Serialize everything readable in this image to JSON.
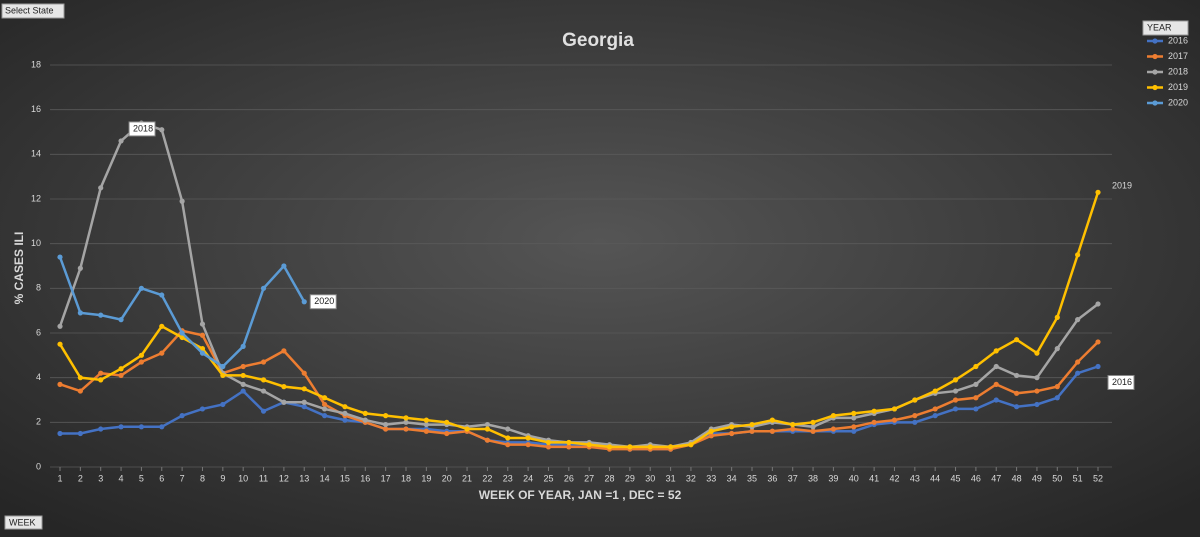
{
  "controls": {
    "state_filter": "Select State",
    "year_filter": "YEAR",
    "week_filter": "WEEK"
  },
  "chart_data": {
    "type": "line",
    "title": "Georgia",
    "y_label": "% CASES ILI",
    "x_label": "WEEK OF YEAR, JAN =1 , DEC = 52",
    "categories": [
      1,
      2,
      3,
      4,
      5,
      6,
      7,
      8,
      9,
      10,
      11,
      12,
      13,
      14,
      15,
      16,
      17,
      18,
      19,
      20,
      21,
      22,
      23,
      24,
      25,
      26,
      27,
      28,
      29,
      30,
      31,
      32,
      33,
      34,
      35,
      36,
      37,
      38,
      39,
      40,
      41,
      42,
      43,
      44,
      45,
      46,
      47,
      48,
      49,
      50,
      51,
      52
    ],
    "ylim": [
      0,
      18
    ],
    "yticks": [
      0,
      2,
      4,
      6,
      8,
      10,
      12,
      14,
      16,
      18
    ],
    "grid": true,
    "legend": "top-right",
    "series": [
      {
        "name": "2016",
        "color": "#4472c4",
        "values": [
          1.5,
          1.5,
          1.7,
          1.8,
          1.8,
          1.8,
          2.3,
          2.6,
          2.8,
          3.4,
          2.5,
          2.9,
          2.7,
          2.3,
          2.1,
          2.0,
          1.7,
          1.7,
          1.7,
          1.6,
          1.6,
          1.2,
          1.1,
          1.1,
          1.0,
          1.0,
          1.0,
          0.9,
          0.8,
          0.8,
          0.8,
          1.1,
          1.5,
          1.5,
          1.6,
          1.6,
          1.6,
          1.6,
          1.6,
          1.6,
          1.9,
          2.0,
          2.0,
          2.3,
          2.6,
          2.6,
          3.0,
          2.7,
          2.8,
          3.1,
          4.2,
          4.5
        ]
      },
      {
        "name": "2017",
        "color": "#ed7d31",
        "values": [
          3.7,
          3.4,
          4.2,
          4.1,
          4.7,
          5.1,
          6.1,
          5.9,
          4.2,
          4.5,
          4.7,
          5.2,
          4.2,
          2.8,
          2.3,
          2.0,
          1.7,
          1.7,
          1.6,
          1.5,
          1.6,
          1.2,
          1.0,
          1.0,
          0.9,
          0.9,
          0.9,
          0.8,
          0.8,
          0.8,
          0.8,
          1.0,
          1.4,
          1.5,
          1.6,
          1.6,
          1.7,
          1.6,
          1.7,
          1.8,
          2.0,
          2.1,
          2.3,
          2.6,
          3.0,
          3.1,
          3.7,
          3.3,
          3.4,
          3.6,
          4.7,
          5.6
        ]
      },
      {
        "name": "2018",
        "color": "#a5a5a5",
        "values": [
          6.3,
          8.9,
          12.5,
          14.6,
          15.4,
          15.1,
          11.9,
          6.4,
          4.2,
          3.7,
          3.4,
          2.9,
          2.9,
          2.6,
          2.4,
          2.1,
          1.9,
          2.0,
          1.9,
          1.9,
          1.8,
          1.9,
          1.7,
          1.4,
          1.2,
          1.1,
          1.1,
          1.0,
          0.9,
          1.0,
          0.9,
          1.1,
          1.7,
          1.9,
          1.8,
          2.0,
          1.9,
          1.8,
          2.2,
          2.2,
          2.4,
          2.6,
          3.0,
          3.3,
          3.4,
          3.7,
          4.5,
          4.1,
          4.0,
          5.3,
          6.6,
          7.3
        ]
      },
      {
        "name": "2019",
        "color": "#ffc000",
        "values": [
          5.5,
          4.0,
          3.9,
          4.4,
          5.0,
          6.3,
          5.8,
          5.3,
          4.1,
          4.1,
          3.9,
          3.6,
          3.5,
          3.1,
          2.7,
          2.4,
          2.3,
          2.2,
          2.1,
          2.0,
          1.7,
          1.7,
          1.3,
          1.3,
          1.1,
          1.1,
          1.0,
          0.9,
          0.9,
          0.9,
          0.9,
          1.0,
          1.6,
          1.8,
          1.9,
          2.1,
          1.9,
          2.0,
          2.3,
          2.4,
          2.5,
          2.6,
          3.0,
          3.4,
          3.9,
          4.5,
          5.2,
          5.7,
          5.1,
          6.7,
          9.5,
          12.3
        ]
      },
      {
        "name": "2020",
        "color": "#5b9bd5",
        "values": [
          9.4,
          6.9,
          6.8,
          6.6,
          8.0,
          7.7,
          6.0,
          5.1,
          4.5,
          5.4,
          8.0,
          9.0,
          7.4,
          null,
          null,
          null,
          null,
          null,
          null,
          null,
          null,
          null,
          null,
          null,
          null,
          null,
          null,
          null,
          null,
          null,
          null,
          null,
          null,
          null,
          null,
          null,
          null,
          null,
          null,
          null,
          null,
          null,
          null,
          null,
          null,
          null,
          null,
          null,
          null,
          null,
          null,
          null
        ]
      }
    ]
  }
}
